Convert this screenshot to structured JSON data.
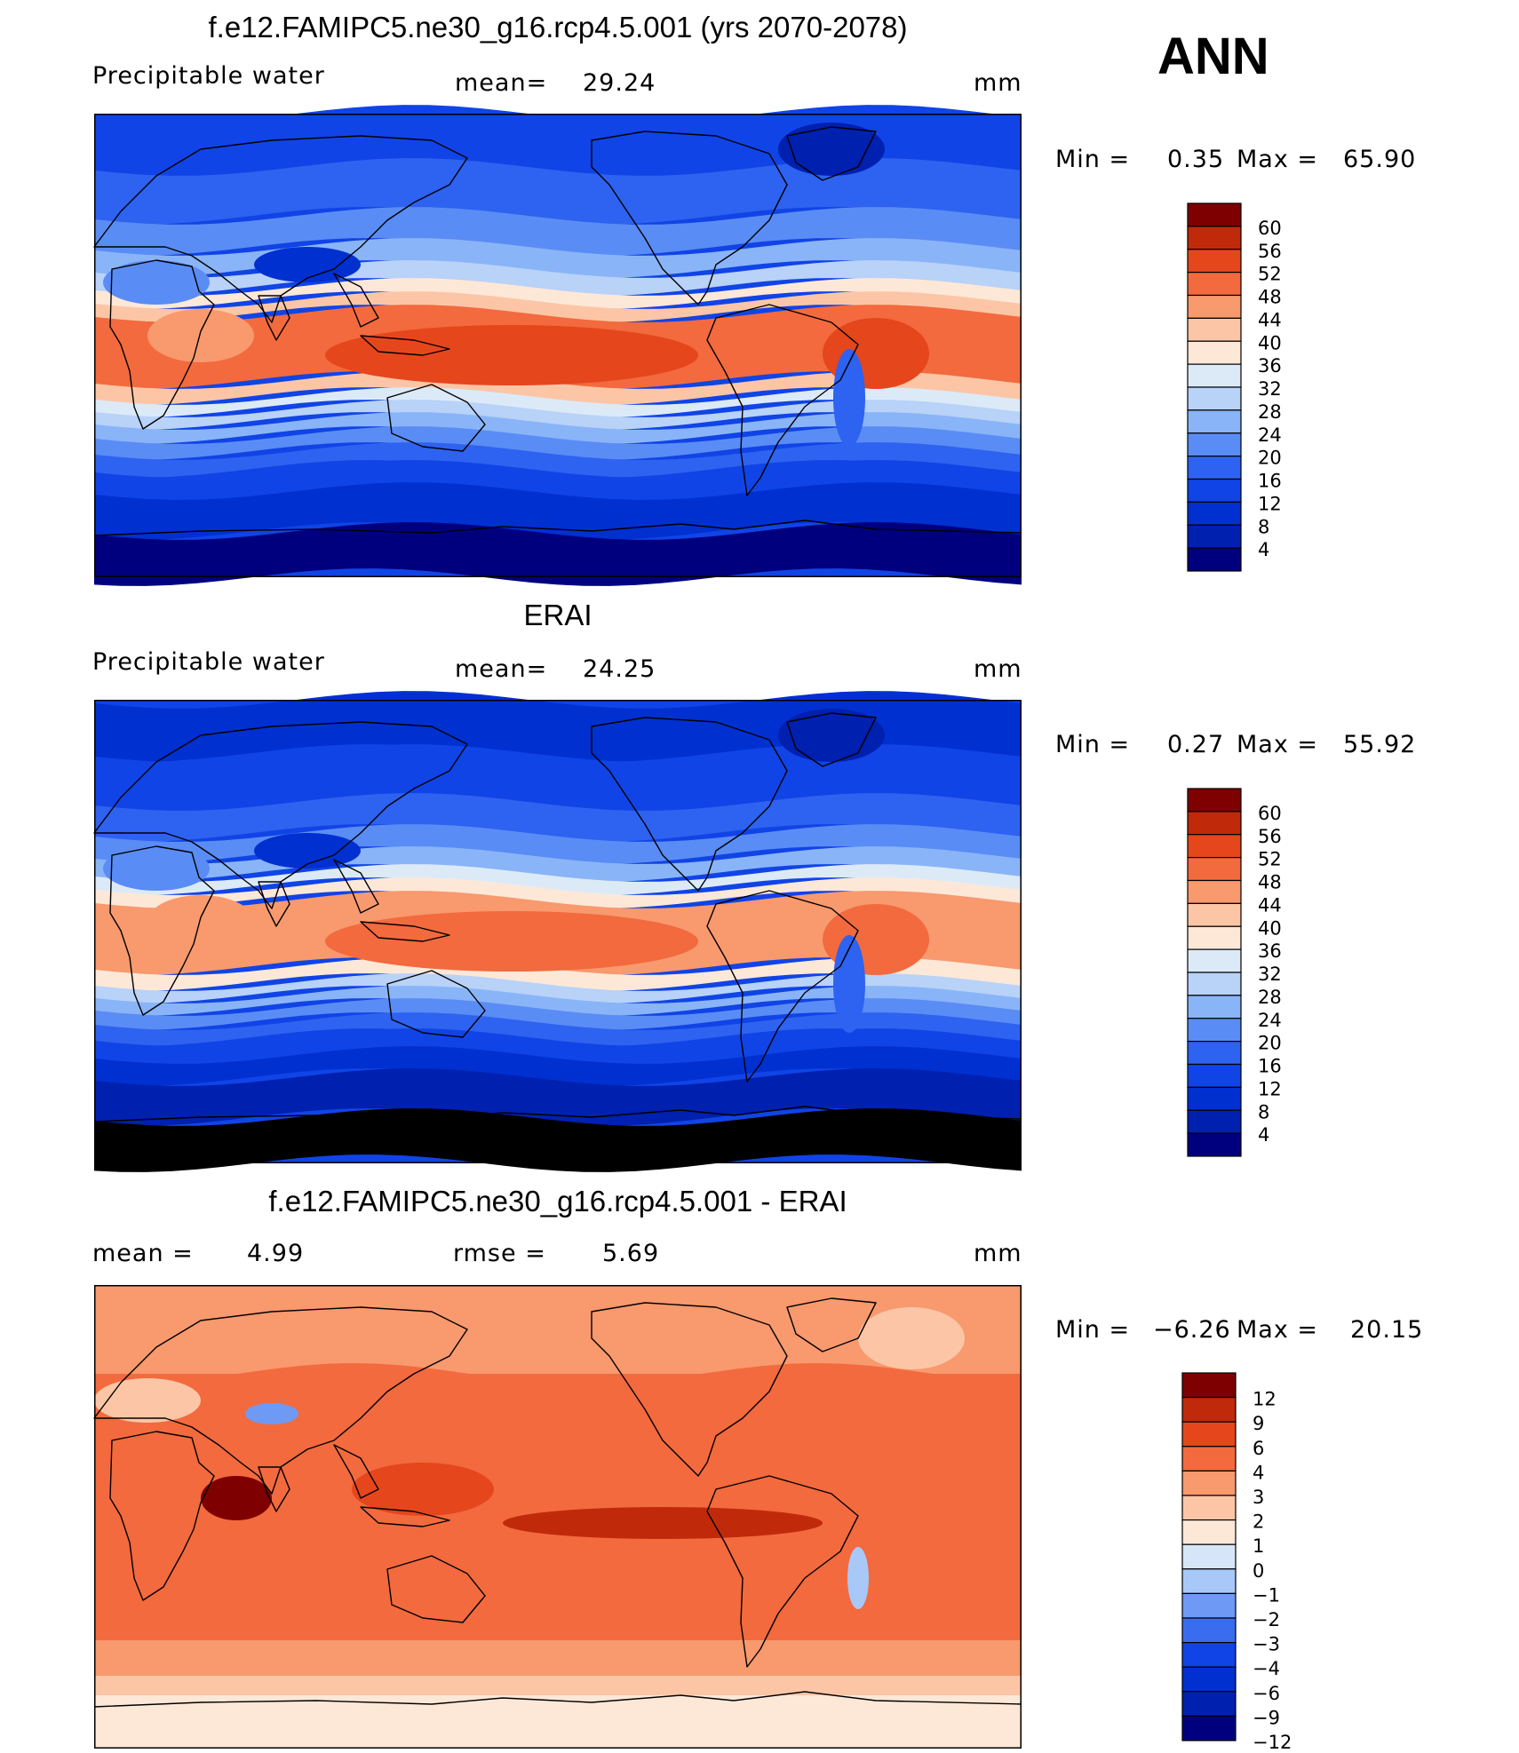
{
  "season": "ANN",
  "colors": {
    "pw": [
      "#00007f",
      "#0020b0",
      "#0030d0",
      "#1044e6",
      "#2e62f0",
      "#5a8cf5",
      "#8ab4f8",
      "#b8d2f8",
      "#dceaf8",
      "#fde8d8",
      "#fcc6a6",
      "#f8996e",
      "#f26a3e",
      "#e6461c",
      "#c02a0a",
      "#7f0000"
    ],
    "diff": [
      "#00007f",
      "#0020b0",
      "#0030d0",
      "#1044e6",
      "#3a6cf0",
      "#6e9af5",
      "#a8c8f8",
      "#d6e6f8",
      "#fde8d8",
      "#fcc6a6",
      "#f8996e",
      "#f26a3e",
      "#e6461c",
      "#c02a0a",
      "#7f0000"
    ]
  },
  "chart_data": [
    {
      "type": "heatmap",
      "title": "f.e12.FAMIPC5.ne30_g16.rcp4.5.001 (yrs 2070-2078)",
      "left_label": "Precipitable  water",
      "mean_label": "mean=",
      "mean_value": "29.24",
      "units": "mm",
      "min_label": "Min  =",
      "min_value": "0.35",
      "max_label": "Max  =",
      "max_value": "65.90",
      "levels": [
        "60",
        "56",
        "52",
        "48",
        "44",
        "40",
        "36",
        "32",
        "28",
        "24",
        "20",
        "16",
        "12",
        "8",
        "4"
      ],
      "variant": "model"
    },
    {
      "type": "heatmap",
      "title": "ERAI",
      "left_label": "Precipitable  water",
      "mean_label": "mean=",
      "mean_value": "24.25",
      "units": "mm",
      "min_label": "Min  =",
      "min_value": "0.27",
      "max_label": "Max  =",
      "max_value": "55.92",
      "levels": [
        "60",
        "56",
        "52",
        "48",
        "44",
        "40",
        "36",
        "32",
        "28",
        "24",
        "20",
        "16",
        "12",
        "8",
        "4"
      ],
      "variant": "obs"
    },
    {
      "type": "heatmap",
      "title": "f.e12.FAMIPC5.ne30_g16.rcp4.5.001 - ERAI",
      "mean_label": "mean  =",
      "mean_value": "4.99",
      "rmse_label": "rmse  =",
      "rmse_value": "5.69",
      "units": "mm",
      "min_label": "Min  =",
      "min_value": "−6.26",
      "max_label": "Max  =",
      "max_value": "20.15",
      "levels": [
        "12",
        "9",
        "6",
        "4",
        "3",
        "2",
        "1",
        "0",
        "−1",
        "−2",
        "−3",
        "−4",
        "−6",
        "−9",
        "−12"
      ],
      "variant": "diff"
    }
  ]
}
